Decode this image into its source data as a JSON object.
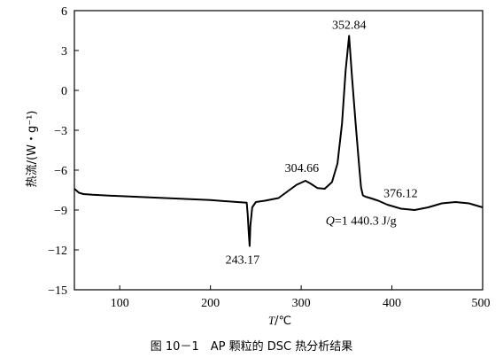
{
  "caption": "图 10－1　AP 颗粒的 DSC 热分析结果",
  "chart_data": {
    "type": "line",
    "xlabel": "T/℃",
    "ylabel": "热流/(W・g⁻¹)",
    "xlim": [
      50,
      500
    ],
    "ylim": [
      -15,
      6
    ],
    "xticks": [
      100,
      200,
      300,
      400,
      500
    ],
    "yticks": [
      6,
      3,
      0,
      -3,
      -6,
      -9,
      -12,
      -15
    ],
    "grid": false,
    "series": [
      {
        "x": [
          50,
          55,
          60,
          70,
          100,
          150,
          200,
          240,
          241,
          242,
          243.17,
          244,
          246,
          250,
          260,
          275,
          285,
          295,
          304.66,
          310,
          318,
          326,
          334,
          340,
          345,
          349,
          352.84,
          356,
          360,
          364,
          366,
          368,
          371,
          376.12,
          385,
          395,
          410,
          425,
          440,
          455,
          470,
          485,
          500
        ],
        "y": [
          -7.4,
          -7.7,
          -7.8,
          -7.85,
          -7.95,
          -8.1,
          -8.25,
          -8.45,
          -9.3,
          -10.5,
          -11.7,
          -10.2,
          -8.8,
          -8.4,
          -8.3,
          -8.1,
          -7.6,
          -7.1,
          -6.8,
          -7.0,
          -7.35,
          -7.4,
          -6.9,
          -5.5,
          -2.5,
          1.5,
          4.1,
          1.0,
          -2.5,
          -5.8,
          -7.3,
          -7.9,
          -8.0,
          -8.1,
          -8.3,
          -8.6,
          -8.9,
          -9.0,
          -8.8,
          -8.5,
          -8.4,
          -8.5,
          -8.8
        ]
      }
    ],
    "annotations": [
      {
        "text": "352.84",
        "x": 352.84,
        "y": 4.1,
        "anchor": "above"
      },
      {
        "text": "304.66",
        "x": 304.66,
        "y": -6.8,
        "anchor": "above-left"
      },
      {
        "text": "376.12",
        "x": 376.12,
        "y": -8.1,
        "anchor": "above-right"
      },
      {
        "text": "243.17",
        "x": 243.17,
        "y": -11.7,
        "anchor": "below"
      }
    ],
    "q_label": {
      "italic": "Q",
      "rest": "=1 440.3 J/g",
      "x": 327,
      "y": -10.1
    }
  }
}
